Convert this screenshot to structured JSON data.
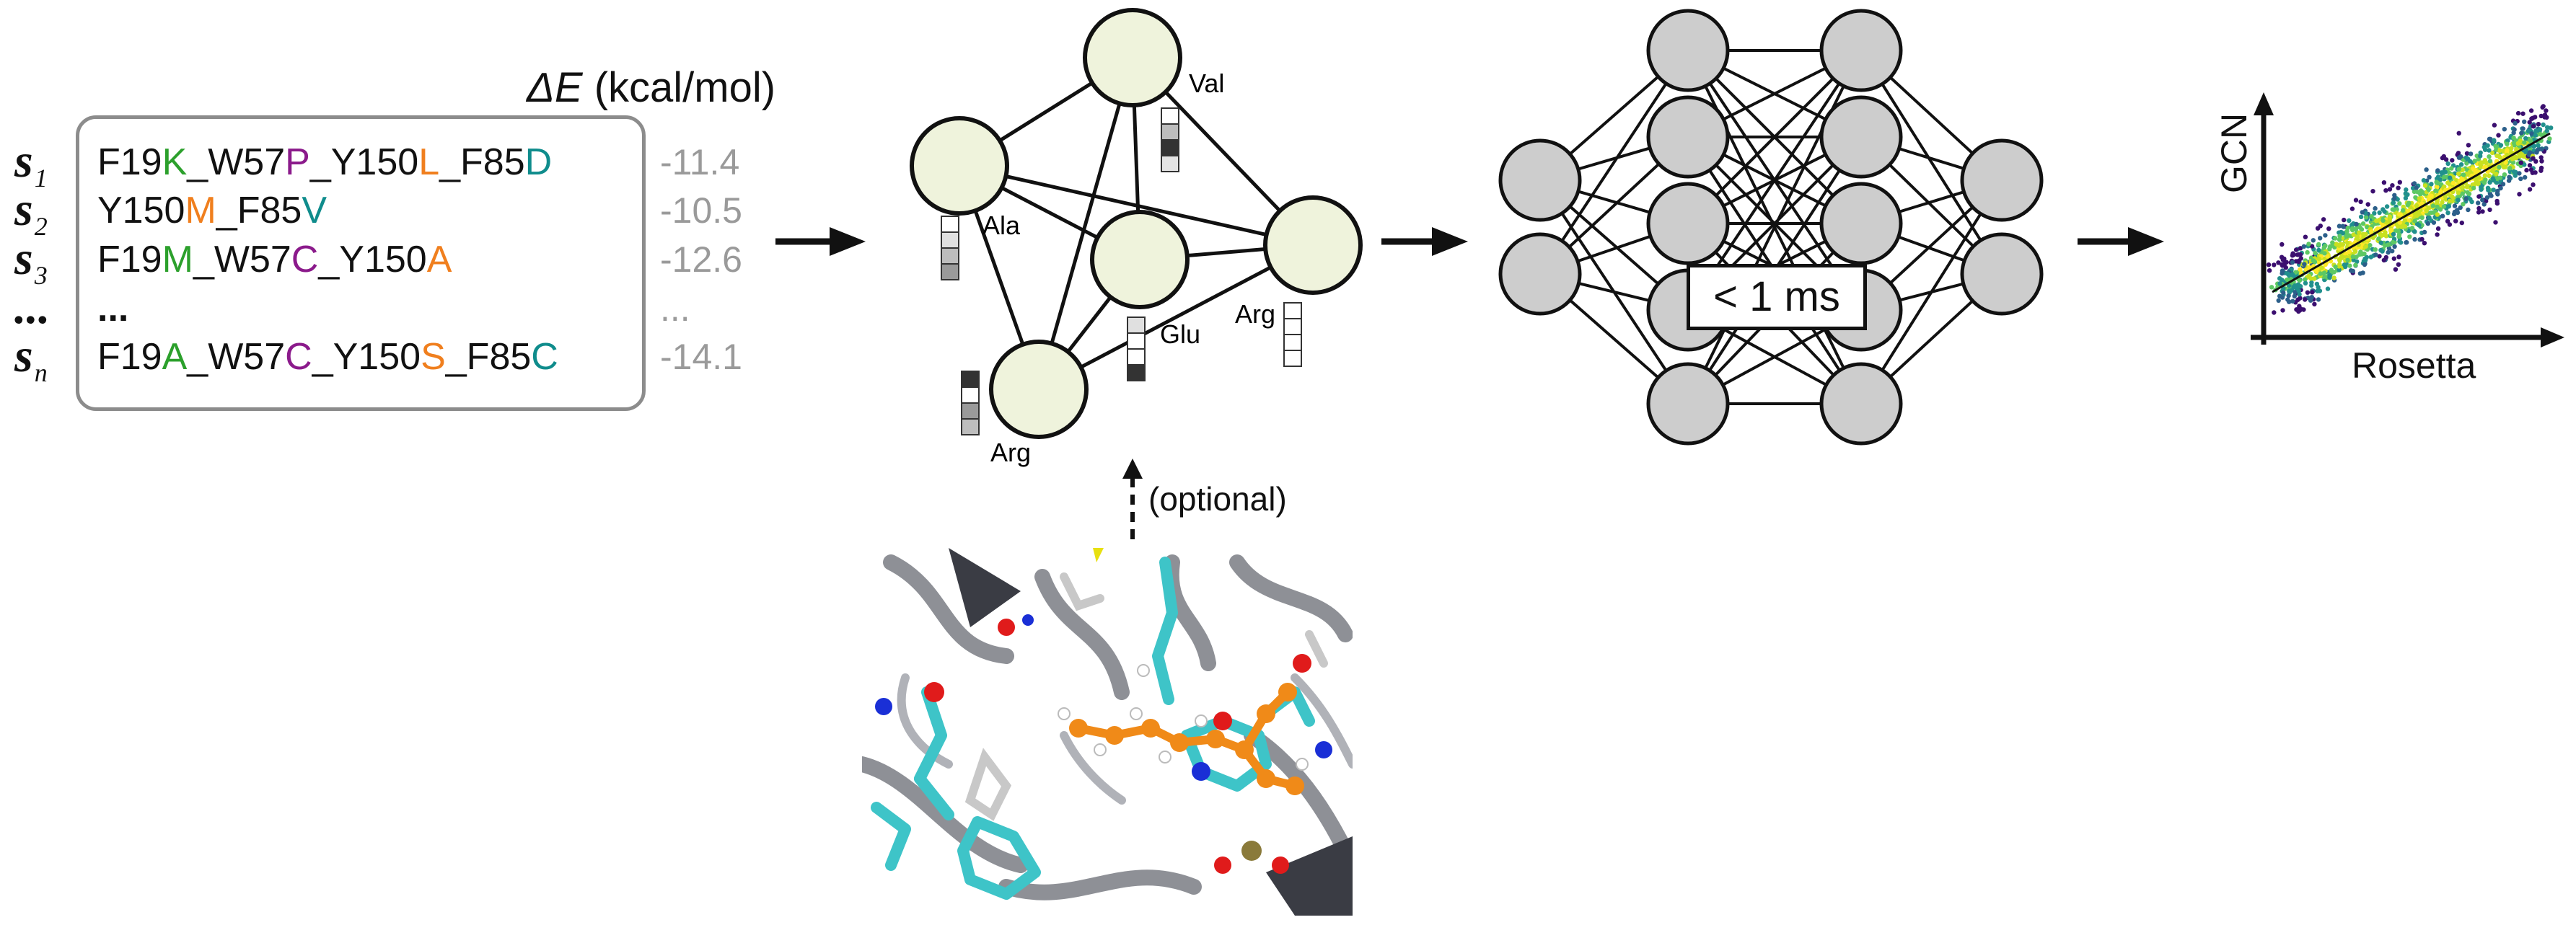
{
  "sequences": {
    "delta_label_symbol": "ΔE",
    "delta_label_unit": " (kcal/mol)",
    "rows": [
      {
        "label": "s",
        "sub": "1",
        "parts": [
          [
            "F19",
            "#111111"
          ],
          [
            "K",
            "#2ca02c"
          ],
          [
            "_W57",
            "#111111"
          ],
          [
            "P",
            "#8b1a8b"
          ],
          [
            "_Y150",
            "#111111"
          ],
          [
            "L",
            "#f07f1e"
          ],
          [
            "_F85",
            "#111111"
          ],
          [
            "D",
            "#0f8c8c"
          ]
        ],
        "energy": "-11.4"
      },
      {
        "label": "s",
        "sub": "2",
        "parts": [
          [
            "Y150",
            "#111111"
          ],
          [
            "M",
            "#f07f1e"
          ],
          [
            "_F85",
            "#111111"
          ],
          [
            "V",
            "#0f8c8c"
          ]
        ],
        "energy": "-10.5"
      },
      {
        "label": "s",
        "sub": "3",
        "parts": [
          [
            "F19",
            "#111111"
          ],
          [
            "M",
            "#2ca02c"
          ],
          [
            "_W57",
            "#111111"
          ],
          [
            "C",
            "#8b1a8b"
          ],
          [
            "_Y150",
            "#111111"
          ],
          [
            "A",
            "#f07f1e"
          ]
        ],
        "energy": "-12.6"
      },
      {
        "label": "...",
        "sub": "",
        "parts": [
          [
            "...",
            "#111111"
          ]
        ],
        "energy": "..."
      },
      {
        "label": "s",
        "sub": "n",
        "parts": [
          [
            "F19",
            "#111111"
          ],
          [
            "A",
            "#2ca02c"
          ],
          [
            "_W57",
            "#111111"
          ],
          [
            "C",
            "#8b1a8b"
          ],
          [
            "_Y150",
            "#111111"
          ],
          [
            "S",
            "#f07f1e"
          ],
          [
            "_F85",
            "#111111"
          ],
          [
            "C",
            "#0f8c8c"
          ]
        ],
        "energy": "-14.1"
      }
    ]
  },
  "graph": {
    "nodes": [
      "Val",
      "Ala",
      "Glu",
      "Arg",
      "Arg"
    ]
  },
  "network": {
    "timing_label": "< 1 ms"
  },
  "scatter": {
    "ylabel": "GCN",
    "xlabel": "Rosetta"
  },
  "structure": {
    "optional_label": "(optional)"
  },
  "colors": {
    "node_fill": "#eff3dc",
    "nn_node_fill": "#cdcdcd",
    "mutation_green": "#2ca02c",
    "mutation_purple": "#8b1a8b",
    "mutation_orange": "#f07f1e",
    "mutation_teal": "#0f8c8c",
    "ligand_orange": "#f08a18",
    "protein_cyan": "#3ec4c8"
  }
}
